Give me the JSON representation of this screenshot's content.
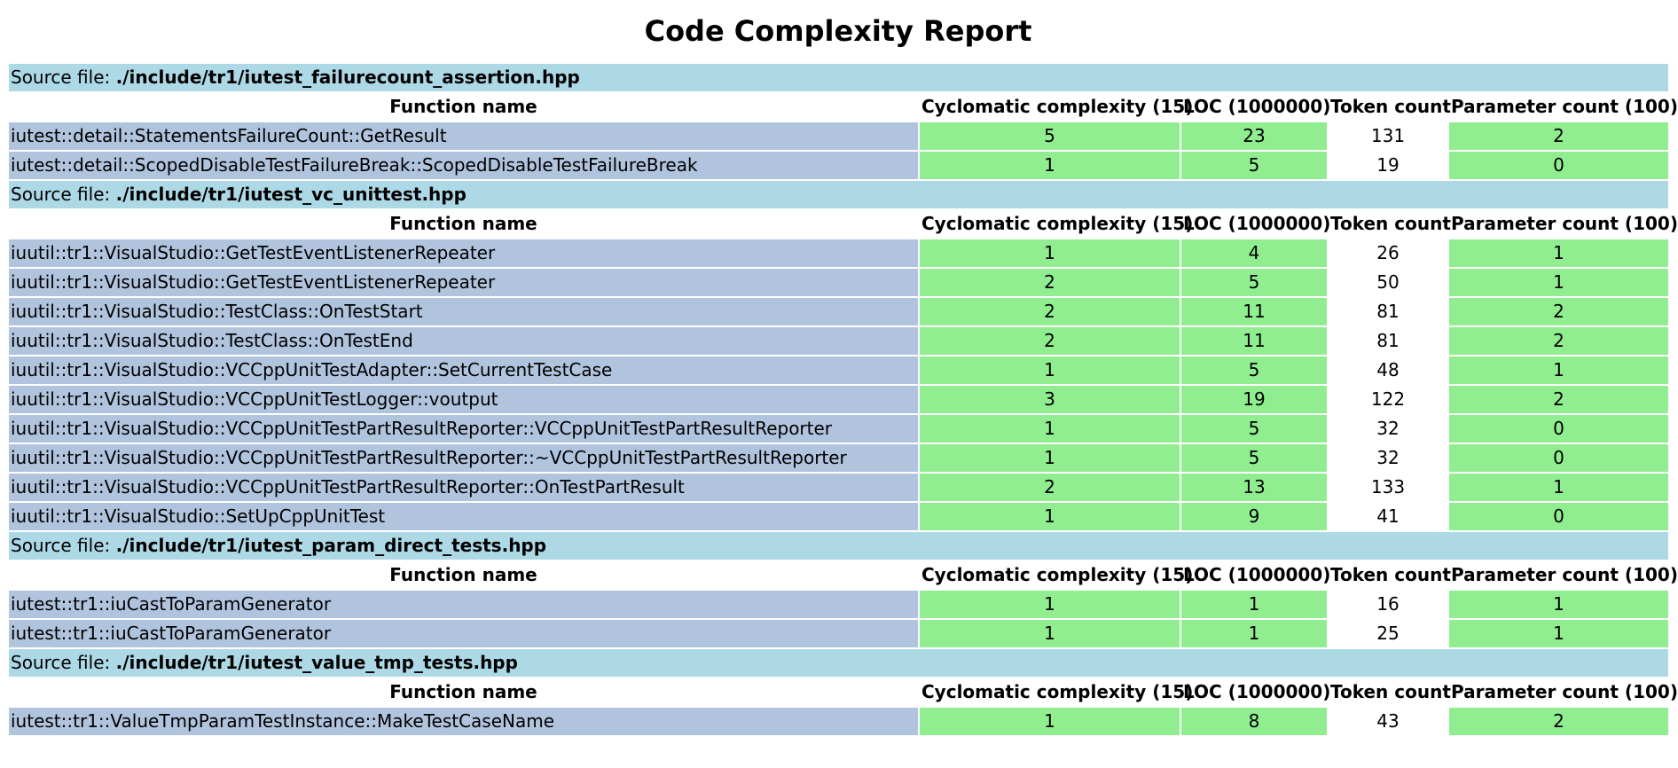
{
  "page": {
    "title": "Code Complexity Report",
    "source_label": "Source file: ",
    "columns": [
      "Function name",
      "Cyclomatic complexity (15)",
      "LOC (1000000)",
      "Token count",
      "Parameter count (100)"
    ]
  },
  "colors": {
    "source_bg": "#add8e6",
    "function_bg": "#b0c4de",
    "ok_bg": "#90ee90"
  },
  "files": [
    {
      "path": "./include/tr1/iutest_failurecount_assertion.hpp",
      "rows": [
        {
          "name": "iutest::detail::StatementsFailureCount::GetResult",
          "ccn": "5",
          "loc": "23",
          "tokens": "131",
          "params": "2"
        },
        {
          "name": "iutest::detail::ScopedDisableTestFailureBreak::ScopedDisableTestFailureBreak",
          "ccn": "1",
          "loc": "5",
          "tokens": "19",
          "params": "0"
        }
      ]
    },
    {
      "path": "./include/tr1/iutest_vc_unittest.hpp",
      "rows": [
        {
          "name": "iuutil::tr1::VisualStudio::GetTestEventListenerRepeater",
          "ccn": "1",
          "loc": "4",
          "tokens": "26",
          "params": "1"
        },
        {
          "name": "iuutil::tr1::VisualStudio::GetTestEventListenerRepeater",
          "ccn": "2",
          "loc": "5",
          "tokens": "50",
          "params": "1"
        },
        {
          "name": "iuutil::tr1::VisualStudio::TestClass::OnTestStart",
          "ccn": "2",
          "loc": "11",
          "tokens": "81",
          "params": "2"
        },
        {
          "name": "iuutil::tr1::VisualStudio::TestClass::OnTestEnd",
          "ccn": "2",
          "loc": "11",
          "tokens": "81",
          "params": "2"
        },
        {
          "name": "iuutil::tr1::VisualStudio::VCCppUnitTestAdapter::SetCurrentTestCase",
          "ccn": "1",
          "loc": "5",
          "tokens": "48",
          "params": "1"
        },
        {
          "name": "iuutil::tr1::VisualStudio::VCCppUnitTestLogger::voutput",
          "ccn": "3",
          "loc": "19",
          "tokens": "122",
          "params": "2"
        },
        {
          "name": "iuutil::tr1::VisualStudio::VCCppUnitTestPartResultReporter::VCCppUnitTestPartResultReporter",
          "ccn": "1",
          "loc": "5",
          "tokens": "32",
          "params": "0"
        },
        {
          "name": "iuutil::tr1::VisualStudio::VCCppUnitTestPartResultReporter::~VCCppUnitTestPartResultReporter",
          "ccn": "1",
          "loc": "5",
          "tokens": "32",
          "params": "0"
        },
        {
          "name": "iuutil::tr1::VisualStudio::VCCppUnitTestPartResultReporter::OnTestPartResult",
          "ccn": "2",
          "loc": "13",
          "tokens": "133",
          "params": "1"
        },
        {
          "name": "iuutil::tr1::VisualStudio::SetUpCppUnitTest",
          "ccn": "1",
          "loc": "9",
          "tokens": "41",
          "params": "0"
        }
      ]
    },
    {
      "path": "./include/tr1/iutest_param_direct_tests.hpp",
      "rows": [
        {
          "name": "iutest::tr1::iuCastToParamGenerator",
          "ccn": "1",
          "loc": "1",
          "tokens": "16",
          "params": "1"
        },
        {
          "name": "iutest::tr1::iuCastToParamGenerator",
          "ccn": "1",
          "loc": "1",
          "tokens": "25",
          "params": "1"
        }
      ]
    },
    {
      "path": "./include/tr1/iutest_value_tmp_tests.hpp",
      "rows": [
        {
          "name": "iutest::tr1::ValueTmpParamTestInstance::MakeTestCaseName",
          "ccn": "1",
          "loc": "8",
          "tokens": "43",
          "params": "2"
        }
      ]
    }
  ]
}
